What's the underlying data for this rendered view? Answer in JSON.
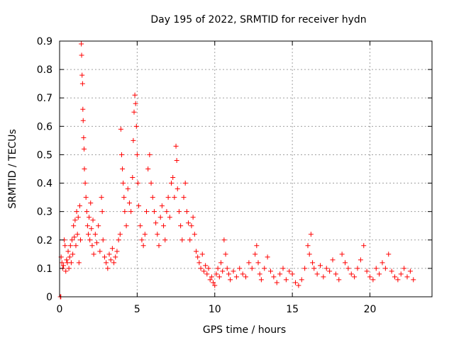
{
  "chart_data": {
    "type": "scatter",
    "title": "Day 195 of 2022, SRMTID for receiver hydn",
    "xlabel": "GPS time / hours",
    "ylabel": "SRMTID / TECUs",
    "xlim": [
      0,
      24
    ],
    "ylim": [
      0,
      0.9
    ],
    "xticks": [
      0,
      5,
      10,
      15,
      20
    ],
    "xtick_labels": [
      "0",
      "5",
      "10",
      "15",
      "20"
    ],
    "yticks": [
      0,
      0.1,
      0.2,
      0.3,
      0.4,
      0.5,
      0.6,
      0.7,
      0.8,
      0.9
    ],
    "ytick_labels": [
      "0",
      "0.1",
      "0.2",
      "0.3",
      "0.4",
      "0.5",
      "0.6",
      "0.7",
      "0.8",
      "0.9"
    ],
    "grid": true,
    "marker": "+",
    "color": "#ff0000",
    "series": [
      {
        "name": "SRMTID",
        "points": [
          [
            0.05,
            0.0
          ],
          [
            0.08,
            0.0
          ],
          [
            0.1,
            0.14
          ],
          [
            0.15,
            0.12
          ],
          [
            0.2,
            0.1
          ],
          [
            0.25,
            0.11
          ],
          [
            0.3,
            0.2
          ],
          [
            0.35,
            0.18
          ],
          [
            0.4,
            0.09
          ],
          [
            0.45,
            0.13
          ],
          [
            0.5,
            0.12
          ],
          [
            0.55,
            0.16
          ],
          [
            0.6,
            0.1
          ],
          [
            0.65,
            0.14
          ],
          [
            0.7,
            0.18
          ],
          [
            0.75,
            0.12
          ],
          [
            0.8,
            0.2
          ],
          [
            0.85,
            0.15
          ],
          [
            0.9,
            0.25
          ],
          [
            0.95,
            0.21
          ],
          [
            1.0,
            0.27
          ],
          [
            1.05,
            0.18
          ],
          [
            1.1,
            0.3
          ],
          [
            1.15,
            0.22
          ],
          [
            1.2,
            0.28
          ],
          [
            1.25,
            0.12
          ],
          [
            1.3,
            0.32
          ],
          [
            1.35,
            0.2
          ],
          [
            1.4,
            0.89
          ],
          [
            1.42,
            0.85
          ],
          [
            1.45,
            0.78
          ],
          [
            1.48,
            0.75
          ],
          [
            1.5,
            0.66
          ],
          [
            1.52,
            0.62
          ],
          [
            1.55,
            0.56
          ],
          [
            1.58,
            0.52
          ],
          [
            1.6,
            0.45
          ],
          [
            1.65,
            0.4
          ],
          [
            1.7,
            0.35
          ],
          [
            1.75,
            0.3
          ],
          [
            1.8,
            0.25
          ],
          [
            1.85,
            0.22
          ],
          [
            1.9,
            0.28
          ],
          [
            1.95,
            0.2
          ],
          [
            2.0,
            0.33
          ],
          [
            2.05,
            0.24
          ],
          [
            2.1,
            0.18
          ],
          [
            2.15,
            0.27
          ],
          [
            2.2,
            0.15
          ],
          [
            2.3,
            0.22
          ],
          [
            2.4,
            0.19
          ],
          [
            2.5,
            0.25
          ],
          [
            2.6,
            0.16
          ],
          [
            2.7,
            0.35
          ],
          [
            2.75,
            0.3
          ],
          [
            2.8,
            0.2
          ],
          [
            2.9,
            0.14
          ],
          [
            3.0,
            0.12
          ],
          [
            3.1,
            0.1
          ],
          [
            3.2,
            0.15
          ],
          [
            3.3,
            0.13
          ],
          [
            3.4,
            0.17
          ],
          [
            3.5,
            0.12
          ],
          [
            3.6,
            0.14
          ],
          [
            3.7,
            0.16
          ],
          [
            3.8,
            0.2
          ],
          [
            3.9,
            0.22
          ],
          [
            3.95,
            0.59
          ],
          [
            4.0,
            0.5
          ],
          [
            4.05,
            0.45
          ],
          [
            4.1,
            0.4
          ],
          [
            4.15,
            0.35
          ],
          [
            4.2,
            0.3
          ],
          [
            4.3,
            0.25
          ],
          [
            4.4,
            0.38
          ],
          [
            4.5,
            0.33
          ],
          [
            4.6,
            0.3
          ],
          [
            4.7,
            0.42
          ],
          [
            4.75,
            0.55
          ],
          [
            4.8,
            0.65
          ],
          [
            4.85,
            0.71
          ],
          [
            4.9,
            0.68
          ],
          [
            4.95,
            0.6
          ],
          [
            5.0,
            0.5
          ],
          [
            5.05,
            0.4
          ],
          [
            5.1,
            0.32
          ],
          [
            5.2,
            0.25
          ],
          [
            5.3,
            0.2
          ],
          [
            5.4,
            0.18
          ],
          [
            5.5,
            0.22
          ],
          [
            5.6,
            0.3
          ],
          [
            5.7,
            0.45
          ],
          [
            5.8,
            0.5
          ],
          [
            5.9,
            0.4
          ],
          [
            6.0,
            0.35
          ],
          [
            6.1,
            0.3
          ],
          [
            6.2,
            0.26
          ],
          [
            6.3,
            0.22
          ],
          [
            6.4,
            0.18
          ],
          [
            6.5,
            0.28
          ],
          [
            6.6,
            0.32
          ],
          [
            6.7,
            0.25
          ],
          [
            6.8,
            0.2
          ],
          [
            6.9,
            0.3
          ],
          [
            7.0,
            0.35
          ],
          [
            7.1,
            0.28
          ],
          [
            7.2,
            0.4
          ],
          [
            7.3,
            0.42
          ],
          [
            7.4,
            0.35
          ],
          [
            7.5,
            0.53
          ],
          [
            7.55,
            0.48
          ],
          [
            7.6,
            0.38
          ],
          [
            7.7,
            0.3
          ],
          [
            7.8,
            0.25
          ],
          [
            7.9,
            0.2
          ],
          [
            8.0,
            0.35
          ],
          [
            8.1,
            0.4
          ],
          [
            8.2,
            0.3
          ],
          [
            8.3,
            0.26
          ],
          [
            8.4,
            0.2
          ],
          [
            8.5,
            0.25
          ],
          [
            8.6,
            0.28
          ],
          [
            8.7,
            0.22
          ],
          [
            8.8,
            0.16
          ],
          [
            8.9,
            0.14
          ],
          [
            9.0,
            0.12
          ],
          [
            9.1,
            0.1
          ],
          [
            9.2,
            0.15
          ],
          [
            9.3,
            0.09
          ],
          [
            9.4,
            0.11
          ],
          [
            9.5,
            0.08
          ],
          [
            9.6,
            0.1
          ],
          [
            9.7,
            0.06
          ],
          [
            9.8,
            0.07
          ],
          [
            9.9,
            0.05
          ],
          [
            10.0,
            0.04
          ],
          [
            10.1,
            0.08
          ],
          [
            10.2,
            0.1
          ],
          [
            10.3,
            0.07
          ],
          [
            10.4,
            0.12
          ],
          [
            10.5,
            0.09
          ],
          [
            10.6,
            0.2
          ],
          [
            10.7,
            0.15
          ],
          [
            10.8,
            0.1
          ],
          [
            10.9,
            0.08
          ],
          [
            11.0,
            0.06
          ],
          [
            11.2,
            0.09
          ],
          [
            11.4,
            0.07
          ],
          [
            11.6,
            0.1
          ],
          [
            11.8,
            0.08
          ],
          [
            12.0,
            0.07
          ],
          [
            12.2,
            0.12
          ],
          [
            12.4,
            0.1
          ],
          [
            12.6,
            0.15
          ],
          [
            12.7,
            0.18
          ],
          [
            12.8,
            0.12
          ],
          [
            12.9,
            0.08
          ],
          [
            13.0,
            0.06
          ],
          [
            13.2,
            0.1
          ],
          [
            13.4,
            0.14
          ],
          [
            13.6,
            0.09
          ],
          [
            13.8,
            0.07
          ],
          [
            14.0,
            0.05
          ],
          [
            14.2,
            0.08
          ],
          [
            14.4,
            0.1
          ],
          [
            14.6,
            0.06
          ],
          [
            14.8,
            0.09
          ],
          [
            15.0,
            0.08
          ],
          [
            15.2,
            0.05
          ],
          [
            15.4,
            0.04
          ],
          [
            15.6,
            0.06
          ],
          [
            15.8,
            0.1
          ],
          [
            16.0,
            0.18
          ],
          [
            16.1,
            0.15
          ],
          [
            16.2,
            0.22
          ],
          [
            16.3,
            0.12
          ],
          [
            16.4,
            0.1
          ],
          [
            16.6,
            0.08
          ],
          [
            16.8,
            0.11
          ],
          [
            17.0,
            0.07
          ],
          [
            17.2,
            0.1
          ],
          [
            17.4,
            0.09
          ],
          [
            17.6,
            0.13
          ],
          [
            17.8,
            0.08
          ],
          [
            18.0,
            0.06
          ],
          [
            18.2,
            0.15
          ],
          [
            18.4,
            0.12
          ],
          [
            18.6,
            0.1
          ],
          [
            18.8,
            0.08
          ],
          [
            19.0,
            0.07
          ],
          [
            19.2,
            0.1
          ],
          [
            19.4,
            0.13
          ],
          [
            19.6,
            0.18
          ],
          [
            19.8,
            0.09
          ],
          [
            20.0,
            0.07
          ],
          [
            20.2,
            0.06
          ],
          [
            20.4,
            0.1
          ],
          [
            20.6,
            0.08
          ],
          [
            20.8,
            0.12
          ],
          [
            21.0,
            0.1
          ],
          [
            21.2,
            0.15
          ],
          [
            21.4,
            0.09
          ],
          [
            21.6,
            0.07
          ],
          [
            21.8,
            0.06
          ],
          [
            22.0,
            0.08
          ],
          [
            22.2,
            0.1
          ],
          [
            22.4,
            0.07
          ],
          [
            22.6,
            0.09
          ],
          [
            22.8,
            0.06
          ]
        ]
      }
    ]
  }
}
